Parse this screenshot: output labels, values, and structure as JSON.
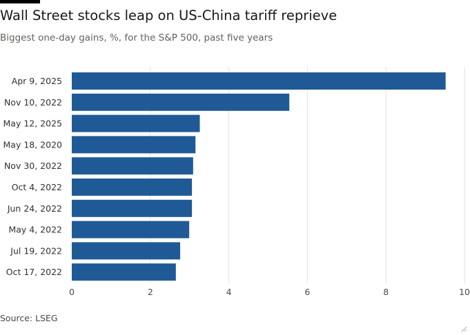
{
  "header": {
    "title": "Wall Street stocks leap on US-China tariff reprieve",
    "subtitle": "Biggest one-day gains, %, for the S&P 500, past five years"
  },
  "footer": {
    "source": "Source: LSEG"
  },
  "icons": {
    "resize": "resize-corner-icon"
  },
  "colors": {
    "bar": "#1f5a96",
    "grid": "#e6e2dc",
    "text": "#33302e",
    "accent_rule": "#000000"
  },
  "chart_data": {
    "type": "bar",
    "orientation": "horizontal",
    "title": "Wall Street stocks leap on US-China tariff reprieve",
    "subtitle": "Biggest one-day gains, %, for the S&P 500, past five years",
    "xlabel": "",
    "ylabel": "",
    "categories": [
      "Apr 9, 2025",
      "Nov 10, 2022",
      "May 12, 2025",
      "May 18, 2020",
      "Nov 30, 2022",
      "Oct 4, 2022",
      "Jun 24, 2022",
      "May 4, 2022",
      "Jul 19, 2022",
      "Oct 17, 2022"
    ],
    "values": [
      9.52,
      5.54,
      3.26,
      3.15,
      3.09,
      3.06,
      3.06,
      2.99,
      2.76,
      2.65
    ],
    "xlim": [
      0,
      10
    ],
    "xticks": [
      0,
      2,
      4,
      6,
      8,
      10
    ],
    "grid": true,
    "legend": "none"
  }
}
